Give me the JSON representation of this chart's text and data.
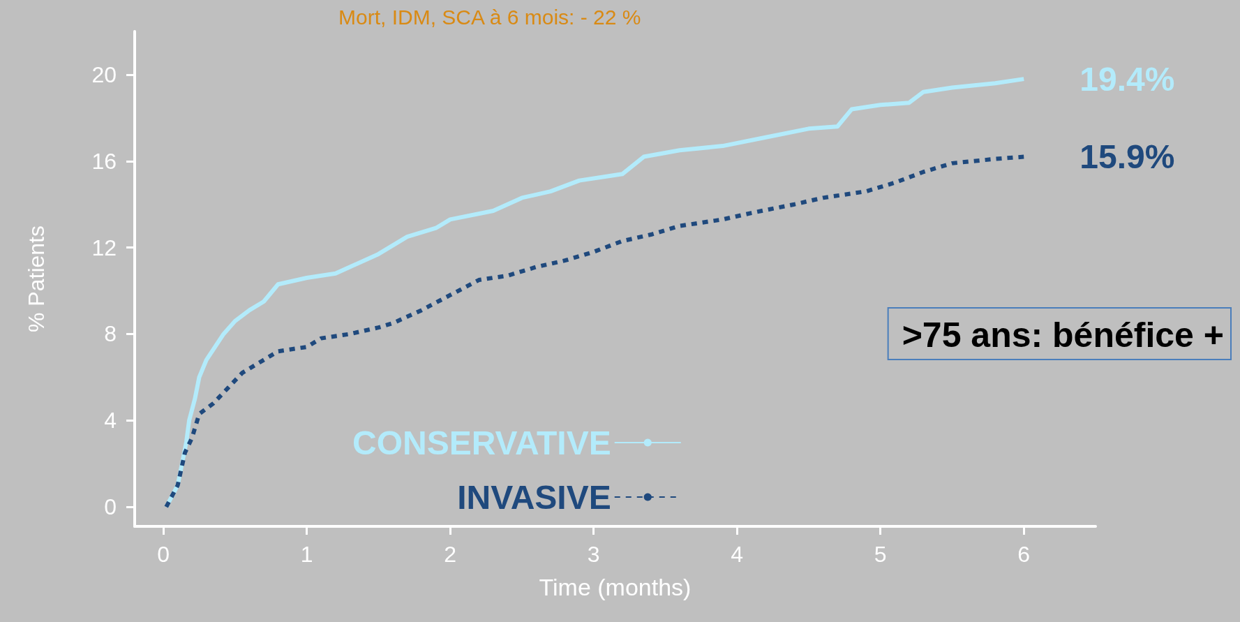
{
  "chart_data": {
    "type": "line",
    "title": "Mort, IDM, SCA à 6 mois: - 22 %",
    "xlabel": "Time (months)",
    "ylabel": "% Patients",
    "xlim": [
      -0.2,
      6.5
    ],
    "xticks": [
      0,
      1,
      2,
      3,
      4,
      5,
      6
    ],
    "ylim": [
      -0.9,
      22
    ],
    "yticks": [
      0,
      4,
      8,
      12,
      16,
      20
    ],
    "grid": false,
    "legend": "bottom",
    "marker": "none",
    "series": [
      {
        "name": "CONSERVATIVE",
        "color": "#b3ebfb",
        "line_style": "solid",
        "x": [
          0.02,
          0.1,
          0.13,
          0.16,
          0.18,
          0.22,
          0.25,
          0.3,
          0.35,
          0.42,
          0.5,
          0.6,
          0.7,
          0.8,
          1.0,
          1.2,
          1.3,
          1.5,
          1.7,
          1.9,
          2.0,
          2.3,
          2.5,
          2.7,
          2.9,
          3.2,
          3.35,
          3.6,
          3.9,
          4.2,
          4.5,
          4.7,
          4.8,
          5.0,
          5.2,
          5.3,
          5.5,
          5.8,
          6.0
        ],
        "values": [
          0,
          1,
          2,
          3,
          4,
          5,
          6,
          6.8,
          7.3,
          8,
          8.6,
          9.1,
          9.5,
          10.3,
          10.6,
          10.8,
          11.1,
          11.7,
          12.5,
          12.9,
          13.3,
          13.7,
          14.3,
          14.6,
          15.1,
          15.4,
          16.2,
          16.5,
          16.7,
          17.1,
          17.5,
          17.6,
          18.4,
          18.6,
          18.7,
          19.2,
          19.4,
          19.6,
          19.8
        ]
      },
      {
        "name": "INVASIVE",
        "color": "#1f497d",
        "line_style": "dotted",
        "x": [
          0.02,
          0.1,
          0.15,
          0.2,
          0.25,
          0.35,
          0.45,
          0.55,
          0.7,
          0.8,
          1.0,
          1.1,
          1.3,
          1.5,
          1.6,
          1.8,
          2.0,
          2.2,
          2.4,
          2.6,
          2.8,
          3.0,
          3.2,
          3.4,
          3.6,
          3.9,
          4.1,
          4.4,
          4.6,
          4.9,
          5.1,
          5.3,
          5.5,
          5.8,
          6.0
        ],
        "values": [
          0,
          1,
          2.5,
          3.2,
          4.3,
          4.8,
          5.5,
          6.2,
          6.8,
          7.2,
          7.4,
          7.8,
          8.0,
          8.3,
          8.5,
          9.1,
          9.8,
          10.5,
          10.7,
          11.1,
          11.4,
          11.8,
          12.3,
          12.6,
          13.0,
          13.3,
          13.6,
          14.0,
          14.3,
          14.6,
          15.0,
          15.5,
          15.9,
          16.1,
          16.2
        ]
      }
    ],
    "annotations": [
      "19.4%",
      "15.9%",
      ">75 ans: bénéfice +"
    ]
  }
}
